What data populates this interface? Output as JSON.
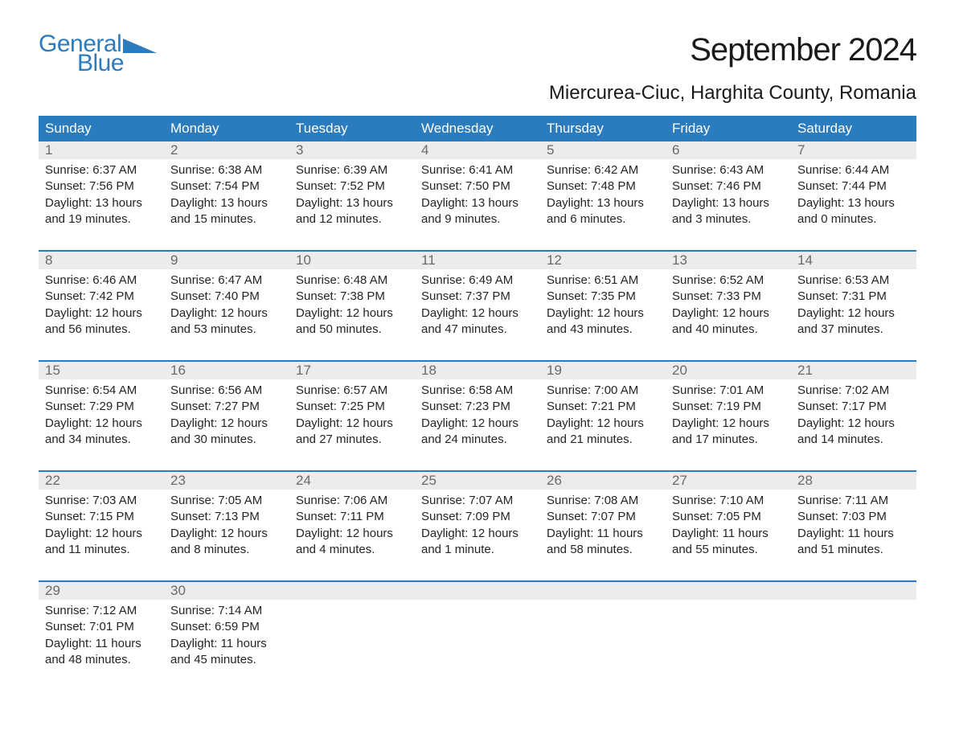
{
  "brand": {
    "line1": "General",
    "line2": "Blue",
    "accent_color": "#2b7bbf"
  },
  "title": "September 2024",
  "location": "Miercurea-Ciuc, Harghita County, Romania",
  "colors": {
    "header_bg": "#2b7bbf",
    "header_text": "#ffffff",
    "daynum_bg": "#ececec",
    "daynum_text": "#6a6a6a",
    "body_text": "#252525",
    "page_bg": "#ffffff",
    "week_border": "#2b7bbf"
  },
  "typography": {
    "month_title_pt": 40,
    "location_pt": 24,
    "weekday_pt": 17,
    "daynum_pt": 17,
    "detail_pt": 15,
    "font_family": "Arial"
  },
  "weekdays": [
    "Sunday",
    "Monday",
    "Tuesday",
    "Wednesday",
    "Thursday",
    "Friday",
    "Saturday"
  ],
  "weeks": [
    [
      {
        "day": "1",
        "sunrise": "Sunrise: 6:37 AM",
        "sunset": "Sunset: 7:56 PM",
        "daylight": "Daylight: 13 hours and 19 minutes."
      },
      {
        "day": "2",
        "sunrise": "Sunrise: 6:38 AM",
        "sunset": "Sunset: 7:54 PM",
        "daylight": "Daylight: 13 hours and 15 minutes."
      },
      {
        "day": "3",
        "sunrise": "Sunrise: 6:39 AM",
        "sunset": "Sunset: 7:52 PM",
        "daylight": "Daylight: 13 hours and 12 minutes."
      },
      {
        "day": "4",
        "sunrise": "Sunrise: 6:41 AM",
        "sunset": "Sunset: 7:50 PM",
        "daylight": "Daylight: 13 hours and 9 minutes."
      },
      {
        "day": "5",
        "sunrise": "Sunrise: 6:42 AM",
        "sunset": "Sunset: 7:48 PM",
        "daylight": "Daylight: 13 hours and 6 minutes."
      },
      {
        "day": "6",
        "sunrise": "Sunrise: 6:43 AM",
        "sunset": "Sunset: 7:46 PM",
        "daylight": "Daylight: 13 hours and 3 minutes."
      },
      {
        "day": "7",
        "sunrise": "Sunrise: 6:44 AM",
        "sunset": "Sunset: 7:44 PM",
        "daylight": "Daylight: 13 hours and 0 minutes."
      }
    ],
    [
      {
        "day": "8",
        "sunrise": "Sunrise: 6:46 AM",
        "sunset": "Sunset: 7:42 PM",
        "daylight": "Daylight: 12 hours and 56 minutes."
      },
      {
        "day": "9",
        "sunrise": "Sunrise: 6:47 AM",
        "sunset": "Sunset: 7:40 PM",
        "daylight": "Daylight: 12 hours and 53 minutes."
      },
      {
        "day": "10",
        "sunrise": "Sunrise: 6:48 AM",
        "sunset": "Sunset: 7:38 PM",
        "daylight": "Daylight: 12 hours and 50 minutes."
      },
      {
        "day": "11",
        "sunrise": "Sunrise: 6:49 AM",
        "sunset": "Sunset: 7:37 PM",
        "daylight": "Daylight: 12 hours and 47 minutes."
      },
      {
        "day": "12",
        "sunrise": "Sunrise: 6:51 AM",
        "sunset": "Sunset: 7:35 PM",
        "daylight": "Daylight: 12 hours and 43 minutes."
      },
      {
        "day": "13",
        "sunrise": "Sunrise: 6:52 AM",
        "sunset": "Sunset: 7:33 PM",
        "daylight": "Daylight: 12 hours and 40 minutes."
      },
      {
        "day": "14",
        "sunrise": "Sunrise: 6:53 AM",
        "sunset": "Sunset: 7:31 PM",
        "daylight": "Daylight: 12 hours and 37 minutes."
      }
    ],
    [
      {
        "day": "15",
        "sunrise": "Sunrise: 6:54 AM",
        "sunset": "Sunset: 7:29 PM",
        "daylight": "Daylight: 12 hours and 34 minutes."
      },
      {
        "day": "16",
        "sunrise": "Sunrise: 6:56 AM",
        "sunset": "Sunset: 7:27 PM",
        "daylight": "Daylight: 12 hours and 30 minutes."
      },
      {
        "day": "17",
        "sunrise": "Sunrise: 6:57 AM",
        "sunset": "Sunset: 7:25 PM",
        "daylight": "Daylight: 12 hours and 27 minutes."
      },
      {
        "day": "18",
        "sunrise": "Sunrise: 6:58 AM",
        "sunset": "Sunset: 7:23 PM",
        "daylight": "Daylight: 12 hours and 24 minutes."
      },
      {
        "day": "19",
        "sunrise": "Sunrise: 7:00 AM",
        "sunset": "Sunset: 7:21 PM",
        "daylight": "Daylight: 12 hours and 21 minutes."
      },
      {
        "day": "20",
        "sunrise": "Sunrise: 7:01 AM",
        "sunset": "Sunset: 7:19 PM",
        "daylight": "Daylight: 12 hours and 17 minutes."
      },
      {
        "day": "21",
        "sunrise": "Sunrise: 7:02 AM",
        "sunset": "Sunset: 7:17 PM",
        "daylight": "Daylight: 12 hours and 14 minutes."
      }
    ],
    [
      {
        "day": "22",
        "sunrise": "Sunrise: 7:03 AM",
        "sunset": "Sunset: 7:15 PM",
        "daylight": "Daylight: 12 hours and 11 minutes."
      },
      {
        "day": "23",
        "sunrise": "Sunrise: 7:05 AM",
        "sunset": "Sunset: 7:13 PM",
        "daylight": "Daylight: 12 hours and 8 minutes."
      },
      {
        "day": "24",
        "sunrise": "Sunrise: 7:06 AM",
        "sunset": "Sunset: 7:11 PM",
        "daylight": "Daylight: 12 hours and 4 minutes."
      },
      {
        "day": "25",
        "sunrise": "Sunrise: 7:07 AM",
        "sunset": "Sunset: 7:09 PM",
        "daylight": "Daylight: 12 hours and 1 minute."
      },
      {
        "day": "26",
        "sunrise": "Sunrise: 7:08 AM",
        "sunset": "Sunset: 7:07 PM",
        "daylight": "Daylight: 11 hours and 58 minutes."
      },
      {
        "day": "27",
        "sunrise": "Sunrise: 7:10 AM",
        "sunset": "Sunset: 7:05 PM",
        "daylight": "Daylight: 11 hours and 55 minutes."
      },
      {
        "day": "28",
        "sunrise": "Sunrise: 7:11 AM",
        "sunset": "Sunset: 7:03 PM",
        "daylight": "Daylight: 11 hours and 51 minutes."
      }
    ],
    [
      {
        "day": "29",
        "sunrise": "Sunrise: 7:12 AM",
        "sunset": "Sunset: 7:01 PM",
        "daylight": "Daylight: 11 hours and 48 minutes."
      },
      {
        "day": "30",
        "sunrise": "Sunrise: 7:14 AM",
        "sunset": "Sunset: 6:59 PM",
        "daylight": "Daylight: 11 hours and 45 minutes."
      },
      null,
      null,
      null,
      null,
      null
    ]
  ]
}
